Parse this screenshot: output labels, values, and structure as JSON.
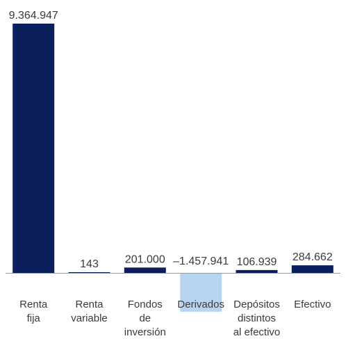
{
  "chart_data": {
    "type": "bar",
    "categories": [
      [
        "Renta",
        "fija"
      ],
      [
        "Renta",
        "variable"
      ],
      [
        "Fondos",
        "de",
        "inversión"
      ],
      [
        "Derivados"
      ],
      [
        "Depósitos",
        "distintos",
        "al efectivo"
      ],
      [
        "Efectivo"
      ]
    ],
    "values": [
      9364947,
      143,
      201000,
      -1457941,
      106939,
      284662
    ],
    "value_labels": [
      "9.364.947",
      "143",
      "201.000",
      "–1.457.941",
      "106.939",
      "284.662"
    ],
    "colors": {
      "positive": "#0b1f5c",
      "negative": "#b8d4f0",
      "baseline": "#999999"
    },
    "title": "",
    "xlabel": "",
    "ylabel": "",
    "grid": false,
    "legend": "none"
  }
}
